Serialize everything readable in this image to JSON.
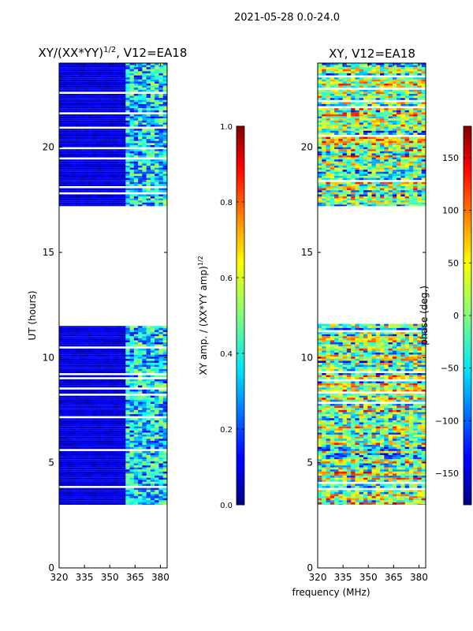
{
  "figure_title": "2021-05-28 0.0-24.0",
  "x_common_label": "frequency (MHz)",
  "colors": {
    "background": "#ffffff",
    "band_fill": "#00007f",
    "spine": "#000000"
  },
  "chart_data": [
    {
      "type": "heatmap",
      "title": "XY/(XX*YY)",
      "title_superscript": "1/2",
      "title_suffix": ", V12=EA18",
      "xlabel": "",
      "ylabel": "UT (hours)",
      "xlim": [
        320,
        384
      ],
      "ylim": [
        0,
        24
      ],
      "x_ticks": [
        "320",
        "335",
        "350",
        "365",
        "380"
      ],
      "x_tick_values": [
        320,
        335,
        350,
        365,
        380
      ],
      "y_ticks": [
        "0",
        "5",
        "10",
        "15",
        "20"
      ],
      "y_tick_values": [
        0,
        5,
        10,
        15,
        20
      ],
      "data_bands_hours": [
        [
          3.0,
          11.6
        ],
        [
          17.2,
          24.0
        ]
      ],
      "colorbar": {
        "label": "XY amp. / (XX*YY amp)",
        "label_superscript": "1/2",
        "range": [
          0.0,
          1.0
        ],
        "ticks": [
          "0.0",
          "0.2",
          "0.4",
          "0.6",
          "0.8",
          "1.0"
        ],
        "tick_values": [
          0.0,
          0.2,
          0.4,
          0.6,
          0.8,
          1.0
        ]
      }
    },
    {
      "type": "heatmap",
      "title": "XY, V12=EA18",
      "xlabel": "frequency (MHz)",
      "ylabel": "",
      "xlim": [
        320,
        384
      ],
      "ylim": [
        0,
        24
      ],
      "x_ticks": [
        "320",
        "335",
        "350",
        "365",
        "380"
      ],
      "x_tick_values": [
        320,
        335,
        350,
        365,
        380
      ],
      "y_ticks": [
        "0",
        "5",
        "10",
        "15",
        "20"
      ],
      "y_tick_values": [
        0,
        5,
        10,
        15,
        20
      ],
      "data_bands_hours": [
        [
          3.0,
          11.6
        ],
        [
          17.2,
          24.0
        ]
      ],
      "colorbar": {
        "label": "phase (deg.)",
        "range": [
          -180,
          180
        ],
        "ticks": [
          "−150",
          "−100",
          "−50",
          "0",
          "50",
          "100",
          "150"
        ],
        "tick_values": [
          -150,
          -100,
          -50,
          0,
          50,
          100,
          150
        ]
      }
    }
  ]
}
